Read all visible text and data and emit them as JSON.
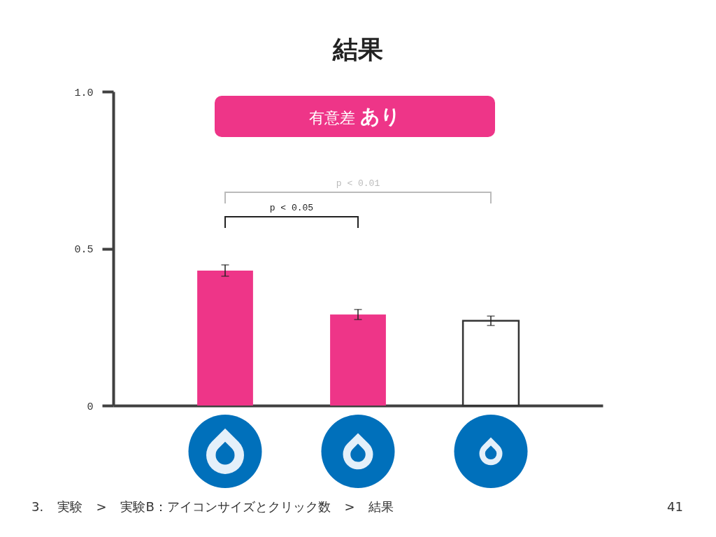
{
  "chart_data": {
    "type": "bar",
    "title": "結果",
    "categories": [
      null,
      null,
      null
    ],
    "values": [
      0.43,
      0.29,
      0.27
    ],
    "colors": [
      "#ee3588",
      "#ee3588",
      "#ffffff"
    ],
    "errors": [
      0.018,
      0.016,
      0.015
    ],
    "ylim": [
      0,
      1
    ],
    "yticks": [
      0,
      0.5,
      {
        "value": 1,
        "label": "1.0"
      }
    ],
    "annotations": [
      "有意差 あり",
      "p < 0.01",
      "p < 0.05",
      "3. 実験 > 実験B：アイコンサイズとクリック数 > 結果",
      "41"
    ]
  }
}
